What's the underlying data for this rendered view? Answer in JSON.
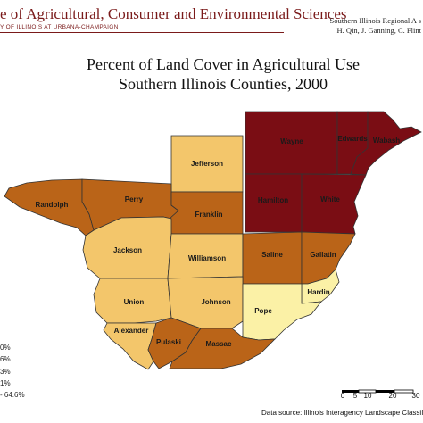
{
  "header": {
    "institution": "e of Agricultural, Consumer and Environmental Sciences",
    "university": "Y OF ILLINOIS AT URBANA-CHAMPAIGN",
    "right_line1": "Southern Illinois Regional A s",
    "right_line2": "H. Qin, J. Ganning, C. Flint"
  },
  "map": {
    "title_line1": "Percent of Land Cover in Agricultural Use",
    "title_line2": "Southern Illinois Counties, 2000",
    "colors": {
      "very_high": "#7a0d14",
      "high": "#ba6418",
      "medium": "#d99a3d",
      "low": "#f3c66b",
      "very_low": "#fbf1a6"
    },
    "counties": [
      {
        "name": "Wayne",
        "class": "very_high"
      },
      {
        "name": "Edwards",
        "class": "very_high"
      },
      {
        "name": "Wabash",
        "class": "very_high"
      },
      {
        "name": "Hamilton",
        "class": "very_high"
      },
      {
        "name": "White",
        "class": "very_high"
      },
      {
        "name": "Jefferson",
        "class": "low"
      },
      {
        "name": "Randolph",
        "class": "high"
      },
      {
        "name": "Perry",
        "class": "high"
      },
      {
        "name": "Franklin",
        "class": "high"
      },
      {
        "name": "Jackson",
        "class": "low"
      },
      {
        "name": "Williamson",
        "class": "low"
      },
      {
        "name": "Saline",
        "class": "high"
      },
      {
        "name": "Gallatin",
        "class": "high"
      },
      {
        "name": "Union",
        "class": "low"
      },
      {
        "name": "Johnson",
        "class": "low"
      },
      {
        "name": "Hardin",
        "class": "very_low"
      },
      {
        "name": "Pope",
        "class": "very_low"
      },
      {
        "name": "Alexander",
        "class": "low"
      },
      {
        "name": "Pulaski",
        "class": "high"
      },
      {
        "name": "Massac",
        "class": "high"
      }
    ]
  },
  "legend": {
    "items": [
      "0%",
      "6%",
      "3%",
      "1%",
      "- 64.6%"
    ]
  },
  "scale": {
    "ticks": [
      "0",
      "5",
      "10",
      "20",
      "30"
    ]
  },
  "source": "Data source: Illinois Interagency Landscape Classif"
}
